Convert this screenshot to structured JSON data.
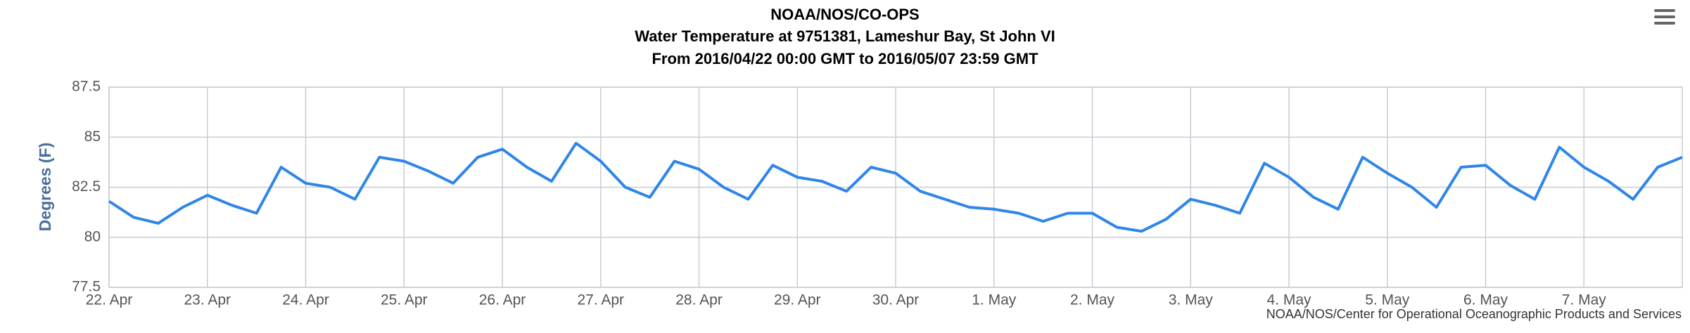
{
  "chart_data": {
    "type": "line",
    "title": "NOAA/NOS/CO-OPS",
    "subtitle": "Water Temperature at 9751381, Lameshur Bay, St John VI",
    "subtitle2": "From 2016/04/22 00:00 GMT to 2016/05/07 23:59 GMT",
    "y_label": "Degrees (F)",
    "credits": "NOAA/NOS/Center for Operational Oceanographic Products and Services",
    "x": [
      0,
      0.25,
      0.5,
      0.75,
      1,
      1.25,
      1.5,
      1.75,
      2,
      2.25,
      2.5,
      2.75,
      3,
      3.25,
      3.5,
      3.75,
      4,
      4.25,
      4.5,
      4.75,
      5,
      5.25,
      5.5,
      5.75,
      6,
      6.25,
      6.5,
      6.75,
      7,
      7.25,
      7.5,
      7.75,
      8,
      8.25,
      8.5,
      8.75,
      9,
      9.25,
      9.5,
      9.75,
      10,
      10.25,
      10.5,
      10.75,
      11,
      11.25,
      11.5,
      11.75,
      12,
      12.25,
      12.5,
      12.75,
      13,
      13.25,
      13.5,
      13.75,
      14,
      14.25,
      14.5,
      14.75,
      15,
      15.25,
      15.5,
      15.75,
      16
    ],
    "series": [
      {
        "name": "Water Temperature",
        "color": "#2f86e8",
        "values": [
          81.8,
          81.0,
          80.7,
          81.5,
          82.1,
          81.6,
          81.2,
          83.5,
          82.7,
          82.5,
          81.9,
          84.0,
          83.8,
          83.3,
          82.7,
          84.0,
          84.4,
          83.5,
          82.8,
          84.7,
          83.8,
          82.5,
          82.0,
          83.8,
          83.4,
          82.5,
          81.9,
          83.6,
          83.0,
          82.8,
          82.3,
          83.5,
          83.2,
          82.3,
          81.9,
          81.5,
          81.4,
          81.2,
          80.8,
          81.2,
          81.2,
          80.5,
          80.3,
          80.9,
          81.9,
          81.6,
          81.2,
          83.7,
          83.0,
          82.0,
          81.4,
          84.0,
          83.2,
          82.5,
          81.5,
          83.5,
          83.6,
          82.6,
          81.9,
          84.5,
          83.5,
          82.8,
          81.9,
          83.5,
          84.0
        ]
      }
    ],
    "xlim": [
      0,
      16
    ],
    "xticks": [
      {
        "value": 0,
        "label": "22. Apr"
      },
      {
        "value": 1,
        "label": "23. Apr"
      },
      {
        "value": 2,
        "label": "24. Apr"
      },
      {
        "value": 3,
        "label": "25. Apr"
      },
      {
        "value": 4,
        "label": "26. Apr"
      },
      {
        "value": 5,
        "label": "27. Apr"
      },
      {
        "value": 6,
        "label": "28. Apr"
      },
      {
        "value": 7,
        "label": "29. Apr"
      },
      {
        "value": 8,
        "label": "30. Apr"
      },
      {
        "value": 9,
        "label": "1. May"
      },
      {
        "value": 10,
        "label": "2. May"
      },
      {
        "value": 11,
        "label": "3. May"
      },
      {
        "value": 12,
        "label": "4. May"
      },
      {
        "value": 13,
        "label": "5. May"
      },
      {
        "value": 14,
        "label": "6. May"
      },
      {
        "value": 15,
        "label": "7. May"
      }
    ],
    "ylim": [
      77.5,
      87.5
    ],
    "yticks": [
      77.5,
      80,
      82.5,
      85,
      87.5
    ],
    "grid": true
  }
}
